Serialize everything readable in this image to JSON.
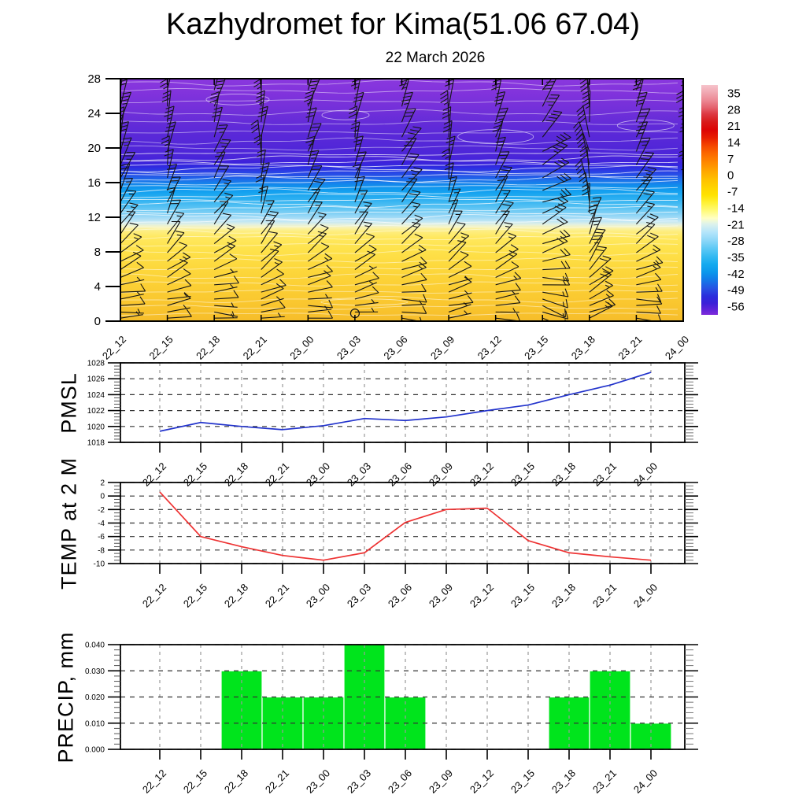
{
  "header": {
    "title": "Kazhydromet for Kima(51.06 67.04)",
    "subtitle": "22 March 2026"
  },
  "time_labels": [
    "22_12",
    "22_15",
    "22_18",
    "22_21",
    "23_00",
    "23_03",
    "23_06",
    "23_09",
    "23_12",
    "23_15",
    "23_18",
    "23_21",
    "24_00"
  ],
  "chart_data": [
    {
      "id": "cross_section",
      "type": "heatmap",
      "description": "time-height temperature cross-section with wind barbs",
      "ylim": [
        0,
        28
      ],
      "yticks": [
        0,
        4,
        8,
        12,
        16,
        20,
        24,
        28
      ],
      "field_gradient": [
        [
          0.0,
          "#8a38de"
        ],
        [
          0.06,
          "#8133dc"
        ],
        [
          0.13,
          "#7230d9"
        ],
        [
          0.2,
          "#5f2ad8"
        ],
        [
          0.27,
          "#5427d8"
        ],
        [
          0.32,
          "#4b25d9"
        ],
        [
          0.345,
          "#3d22db"
        ],
        [
          0.362,
          "#3029e0"
        ],
        [
          0.378,
          "#2b3ae4"
        ],
        [
          0.398,
          "#2551e7"
        ],
        [
          0.42,
          "#1c73ea"
        ],
        [
          0.445,
          "#0f92ed"
        ],
        [
          0.47,
          "#15a3f0"
        ],
        [
          0.5,
          "#30b1f1"
        ],
        [
          0.53,
          "#57c2f3"
        ],
        [
          0.555,
          "#80d0f5"
        ],
        [
          0.575,
          "#a6dcf6"
        ],
        [
          0.59,
          "#c5e8f3"
        ],
        [
          0.602,
          "#e5f1df"
        ],
        [
          0.614,
          "#f8f3b2"
        ],
        [
          0.628,
          "#fdee82"
        ],
        [
          0.655,
          "#ffe85e"
        ],
        [
          0.705,
          "#fee24b"
        ],
        [
          0.78,
          "#fdd83c"
        ],
        [
          0.87,
          "#fbcd33"
        ],
        [
          0.94,
          "#f9c52e"
        ],
        [
          1.0,
          "#f6bd2a"
        ]
      ],
      "colorbar": {
        "ticks": [
          35,
          28,
          21,
          14,
          7,
          0,
          -7,
          -14,
          -21,
          -28,
          -35,
          -42,
          -49,
          -56
        ],
        "value_range": [
          38.5,
          -59.5
        ],
        "gradient": [
          [
            0.0,
            "#f6c3cb"
          ],
          [
            0.03,
            "#f1aab4"
          ],
          [
            0.065,
            "#ec8a96"
          ],
          [
            0.1,
            "#e4606c"
          ],
          [
            0.125,
            "#dd3a44"
          ],
          [
            0.16,
            "#d81a1a"
          ],
          [
            0.195,
            "#dc0404"
          ],
          [
            0.23,
            "#e81e00"
          ],
          [
            0.265,
            "#f54800"
          ],
          [
            0.3,
            "#fc6a00"
          ],
          [
            0.34,
            "#ff8b00"
          ],
          [
            0.375,
            "#ffa700"
          ],
          [
            0.41,
            "#ffc000"
          ],
          [
            0.445,
            "#ffd300"
          ],
          [
            0.48,
            "#ffe300"
          ],
          [
            0.515,
            "#fff23b"
          ],
          [
            0.55,
            "#fffb80"
          ],
          [
            0.58,
            "#ffffc5"
          ],
          [
            0.605,
            "#ddf2ec"
          ],
          [
            0.64,
            "#b5e5fa"
          ],
          [
            0.675,
            "#8ed8f8"
          ],
          [
            0.71,
            "#5fc9f5"
          ],
          [
            0.745,
            "#35baf2"
          ],
          [
            0.78,
            "#14aaef"
          ],
          [
            0.815,
            "#0c97ec"
          ],
          [
            0.85,
            "#1478e8"
          ],
          [
            0.885,
            "#2752e3"
          ],
          [
            0.92,
            "#2b2cdc"
          ],
          [
            0.95,
            "#3c20d8"
          ],
          [
            0.975,
            "#5c22d9"
          ],
          [
            1.0,
            "#7e2bda"
          ]
        ]
      },
      "wind": {
        "barb_color": "#151515",
        "levels": [
          0.35,
          1.05,
          1.8,
          2.55,
          3.35,
          4.2,
          5.05,
          5.95,
          6.9,
          7.9,
          8.95,
          10.05,
          11.2,
          12.45,
          13.75,
          15.1,
          16.55,
          18.05,
          19.6,
          21.25,
          23.0,
          24.8,
          26.7
        ],
        "dir": [
          88,
          86,
          84,
          81,
          77,
          72,
          66,
          60,
          54,
          48,
          43,
          38,
          33,
          29,
          26,
          23,
          20,
          17,
          15,
          13,
          12,
          11,
          10
        ],
        "spd": [
          5,
          5,
          6,
          7,
          8,
          9,
          10,
          11,
          12,
          12,
          13,
          14,
          15,
          16,
          18,
          20,
          22,
          25,
          28,
          30,
          32,
          34,
          35
        ],
        "col_dir_jitter": [
          2,
          -4,
          6,
          -8,
          3,
          -2,
          9,
          -6,
          2,
          24,
          -18,
          8,
          -3
        ],
        "col_spd_jitter": [
          0,
          1,
          -1,
          2,
          1,
          -1,
          2,
          0,
          2,
          7,
          10,
          4,
          1
        ],
        "calm": {
          "col": 5,
          "level": 0
        }
      },
      "contours": {
        "color": "#ffffff",
        "ys": [
          0.8,
          1.6,
          2.5,
          3.4,
          4.3,
          5.2,
          6.1,
          7.0,
          7.9,
          8.8,
          9.6,
          10.3,
          10.9,
          11.5,
          12.0,
          12.5,
          13.0,
          13.5,
          14.0,
          14.5,
          15.0,
          15.5,
          16.0,
          16.4,
          16.8,
          17.2,
          17.6,
          18.0,
          18.4,
          18.8,
          19.3,
          20.0,
          20.8,
          21.8,
          22.9,
          24.1,
          25.4,
          26.6,
          27.5
        ]
      },
      "loops": [
        [
          8,
          21.3,
          48,
          9
        ],
        [
          2.5,
          25.6,
          40,
          7
        ],
        [
          11.2,
          22.6,
          36,
          7
        ],
        [
          4.8,
          23.8,
          30,
          6
        ],
        [
          5.2,
          2.2,
          55,
          4
        ]
      ]
    },
    {
      "id": "pmsl",
      "type": "line",
      "label": "PMSL",
      "color": "#2233cc",
      "ylim": [
        1018,
        1028
      ],
      "yticks": [
        {
          "v": 1028,
          "label": "1028"
        },
        {
          "v": 1026,
          "label": "1026"
        },
        {
          "v": 1024,
          "label": "1024"
        },
        {
          "v": 1022,
          "label": "1022"
        },
        {
          "v": 1020,
          "label": "1020"
        },
        {
          "v": 1018,
          "label": "1018"
        }
      ],
      "minor": 0.4,
      "values": [
        1019.4,
        1020.5,
        1020.0,
        1019.6,
        1020.1,
        1021.0,
        1020.75,
        1021.2,
        1022.0,
        1022.7,
        1024.0,
        1025.2,
        1026.8
      ]
    },
    {
      "id": "temp2m",
      "type": "line",
      "label": "TEMP at 2 M",
      "color": "#ee3333",
      "ylim": [
        -10,
        2
      ],
      "yticks": [
        {
          "v": 2,
          "label": "2"
        },
        {
          "v": 0,
          "label": "0"
        },
        {
          "v": -2,
          "label": "-2"
        },
        {
          "v": -4,
          "label": "-4"
        },
        {
          "v": -6,
          "label": "-6"
        },
        {
          "v": -8,
          "label": "-8"
        },
        {
          "v": -10,
          "label": "-10"
        }
      ],
      "minor": 0.5,
      "values": [
        0.6,
        -6.0,
        -7.5,
        -8.8,
        -9.5,
        -8.4,
        -3.9,
        -2.0,
        -1.8,
        -6.6,
        -8.4,
        -9.0,
        -9.5
      ]
    },
    {
      "id": "precip",
      "type": "bar",
      "label": "PRECIP, mm",
      "color": "#00e41c",
      "ylim": [
        0,
        0.04
      ],
      "yticks": [
        {
          "v": 0.04,
          "label": "0.040"
        },
        {
          "v": 0.03,
          "label": "0.030"
        },
        {
          "v": 0.02,
          "label": "0.020"
        },
        {
          "v": 0.01,
          "label": "0.010"
        },
        {
          "v": 0,
          "label": "0.000"
        }
      ],
      "minor": 0.002,
      "values": [
        0,
        0,
        0.03,
        0.02,
        0.02,
        0.04,
        0.02,
        0,
        0,
        0,
        0.02,
        0.03,
        0.01
      ]
    }
  ]
}
